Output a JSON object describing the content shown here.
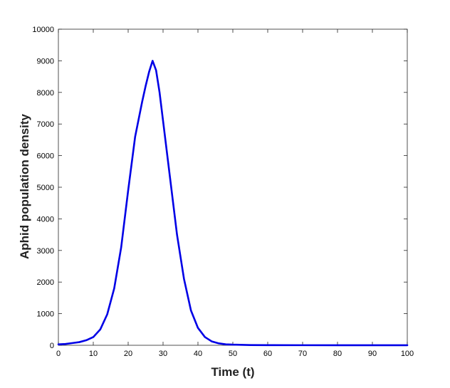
{
  "chart_data": {
    "type": "line",
    "title": "",
    "xlabel": "Time (t)",
    "ylabel": "Aphid population density",
    "xlim": [
      0,
      100
    ],
    "ylim": [
      0,
      10000
    ],
    "xticks": [
      0,
      10,
      20,
      30,
      40,
      50,
      60,
      70,
      80,
      90,
      100
    ],
    "yticks": [
      0,
      1000,
      2000,
      3000,
      4000,
      5000,
      6000,
      7000,
      8000,
      9000,
      10000
    ],
    "grid": false,
    "series": [
      {
        "color": "#0000e6",
        "x": [
          0,
          2,
          4,
          6,
          8,
          10,
          12,
          14,
          16,
          18,
          20,
          22,
          24,
          25,
          26,
          27,
          28,
          29,
          30,
          32,
          34,
          36,
          38,
          40,
          42,
          44,
          46,
          48,
          50,
          55,
          60,
          70,
          80,
          90,
          100
        ],
        "y": [
          30,
          40,
          70,
          100,
          160,
          260,
          500,
          980,
          1800,
          3100,
          4900,
          6600,
          7700,
          8200,
          8650,
          9000,
          8700,
          8000,
          7100,
          5300,
          3500,
          2100,
          1100,
          550,
          260,
          120,
          60,
          30,
          20,
          8,
          5,
          3,
          2,
          2,
          2
        ]
      }
    ]
  }
}
